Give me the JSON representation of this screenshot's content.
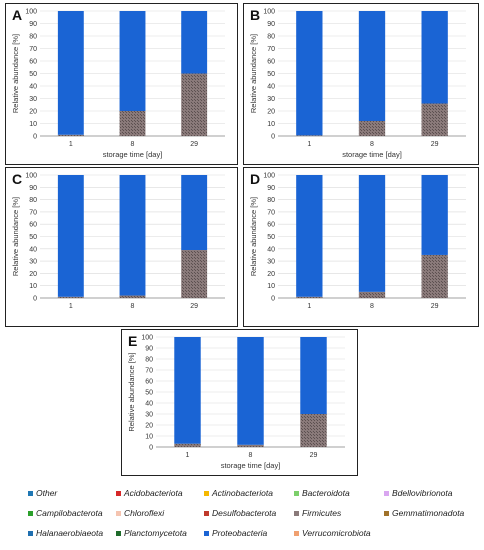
{
  "colors": {
    "other": "#1a64d4",
    "firmicutes": "#8a7a7a"
  },
  "chart_data": [
    {
      "panel": "A",
      "type": "bar",
      "stacked": true,
      "categories": [
        "1",
        "8",
        "29"
      ],
      "series": [
        {
          "key": "Firmicutes",
          "color": "#8a7a7a",
          "values": [
            1,
            20,
            50
          ]
        },
        {
          "key": "Proteobacteria",
          "color": "#1a64d4",
          "values": [
            99,
            80,
            50
          ]
        }
      ],
      "xlabel": "storage time [day]",
      "ylabel": "Relative abundance [%]",
      "ylim": [
        0,
        100
      ],
      "yticks": [
        "0",
        "10",
        "20",
        "30",
        "40",
        "50",
        "60",
        "70",
        "80",
        "90",
        "100"
      ]
    },
    {
      "panel": "B",
      "type": "bar",
      "stacked": true,
      "categories": [
        "1",
        "8",
        "29"
      ],
      "series": [
        {
          "key": "Firmicutes",
          "color": "#8a7a7a",
          "values": [
            0.5,
            12,
            26
          ]
        },
        {
          "key": "Proteobacteria",
          "color": "#1a64d4",
          "values": [
            99.5,
            88,
            74
          ]
        }
      ],
      "xlabel": "storage time [day]",
      "ylabel": "Relative abundance [%]",
      "ylim": [
        0,
        100
      ],
      "yticks": [
        "0",
        "10",
        "20",
        "30",
        "40",
        "50",
        "60",
        "70",
        "80",
        "90",
        "100"
      ]
    },
    {
      "panel": "C",
      "type": "bar",
      "stacked": true,
      "categories": [
        "1",
        "8",
        "29"
      ],
      "series": [
        {
          "key": "Firmicutes",
          "color": "#8a7a7a",
          "values": [
            1,
            2,
            39
          ]
        },
        {
          "key": "Proteobacteria",
          "color": "#1a64d4",
          "values": [
            99,
            98,
            61
          ]
        }
      ],
      "xlabel": "",
      "ylabel": "Relative abundance [%]",
      "ylim": [
        0,
        100
      ],
      "yticks": [
        "0",
        "10",
        "20",
        "30",
        "40",
        "50",
        "60",
        "70",
        "80",
        "90",
        "100"
      ]
    },
    {
      "panel": "D",
      "type": "bar",
      "stacked": true,
      "categories": [
        "1",
        "8",
        "29"
      ],
      "series": [
        {
          "key": "Firmicutes",
          "color": "#8a7a7a",
          "values": [
            1,
            5,
            35
          ]
        },
        {
          "key": "Proteobacteria",
          "color": "#1a64d4",
          "values": [
            99,
            95,
            65
          ]
        }
      ],
      "xlabel": "",
      "ylabel": "Relative abundance [%]",
      "ylim": [
        0,
        100
      ],
      "yticks": [
        "0",
        "10",
        "20",
        "30",
        "40",
        "50",
        "60",
        "70",
        "80",
        "90",
        "100"
      ]
    },
    {
      "panel": "E",
      "type": "bar",
      "stacked": true,
      "categories": [
        "1",
        "8",
        "29"
      ],
      "series": [
        {
          "key": "Firmicutes",
          "color": "#8a7a7a",
          "values": [
            3,
            2,
            30
          ]
        },
        {
          "key": "Proteobacteria",
          "color": "#1a64d4",
          "values": [
            97,
            98,
            70
          ]
        }
      ],
      "xlabel": "storage time [day]",
      "ylabel": "Relative abundance [%]",
      "ylim": [
        0,
        100
      ],
      "yticks": [
        "0",
        "10",
        "20",
        "30",
        "40",
        "50",
        "60",
        "70",
        "80",
        "90",
        "100"
      ]
    }
  ],
  "legend": [
    {
      "label": "Other",
      "color": "#1f77b4"
    },
    {
      "label": "Acidobacteriota",
      "color": "#d62728"
    },
    {
      "label": "Actinobacteriota",
      "color": "#f5b800"
    },
    {
      "label": "Bacteroidota",
      "color": "#7ccf6a"
    },
    {
      "label": "Bdellovibrionota",
      "color": "#d9a6f0"
    },
    {
      "label": "Campilobacterota",
      "color": "#2ca02c"
    },
    {
      "label": "Chloroflexi",
      "color": "#f5c4b0"
    },
    {
      "label": "Desulfobacterota",
      "color": "#c0392b"
    },
    {
      "label": "Firmicutes",
      "color": "#8a7a7a"
    },
    {
      "label": "Gemmatimonadota",
      "color": "#a0722a"
    },
    {
      "label": "Halanaerobiaeota",
      "color": "#1f6fb0"
    },
    {
      "label": "Planctomycetota",
      "color": "#1e6b2a"
    },
    {
      "label": "Proteobacteria",
      "color": "#1a64d4"
    },
    {
      "label": "Verrucomicrobiota",
      "color": "#f0a070"
    }
  ]
}
